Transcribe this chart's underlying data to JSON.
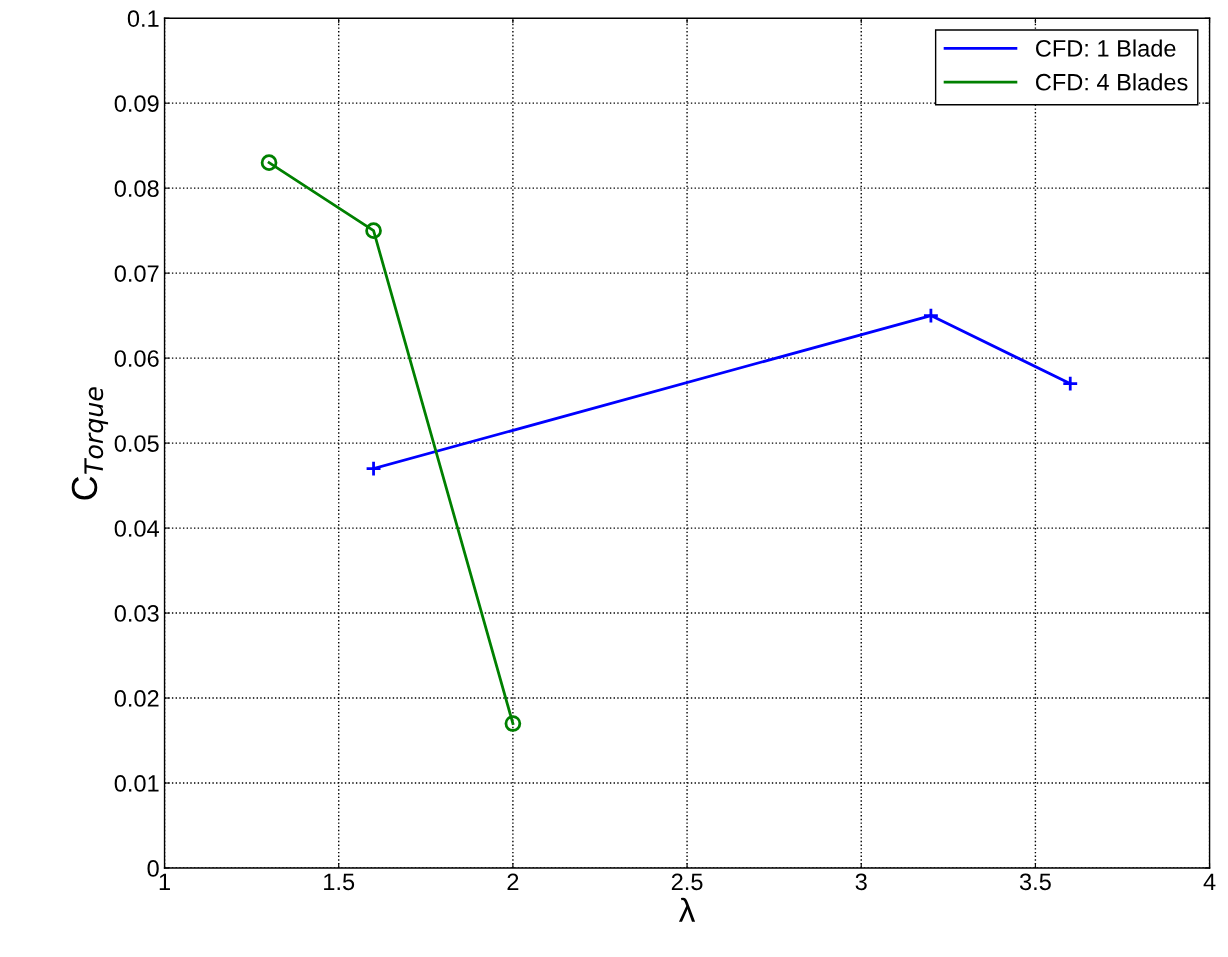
{
  "chart_data": {
    "type": "line",
    "xlabel": "λ",
    "ylabel": "C$_{Torque}$",
    "series": [
      {
        "name": "CFD: 1 Blade",
        "color": "#0000ff",
        "marker": "cross",
        "x": [
          1.6,
          3.2,
          3.6
        ],
        "values": [
          0.047,
          0.065,
          0.057
        ]
      },
      {
        "name": "CFD: 4 Blades",
        "color": "#008000",
        "marker": "circle",
        "x": [
          1.3,
          1.6,
          2.0
        ],
        "values": [
          0.083,
          0.075,
          0.017
        ]
      }
    ],
    "xlim": [
      1,
      4
    ],
    "xticks": [
      1,
      1.5,
      2,
      2.5,
      3,
      3.5,
      4
    ],
    "ylim": [
      0,
      0.1
    ],
    "yticks": [
      0,
      0.01,
      0.02,
      0.03,
      0.04,
      0.05,
      0.06,
      0.07,
      0.08,
      0.09,
      0.1
    ],
    "grid": true,
    "legend": "top right",
    "line_style": "solid"
  }
}
